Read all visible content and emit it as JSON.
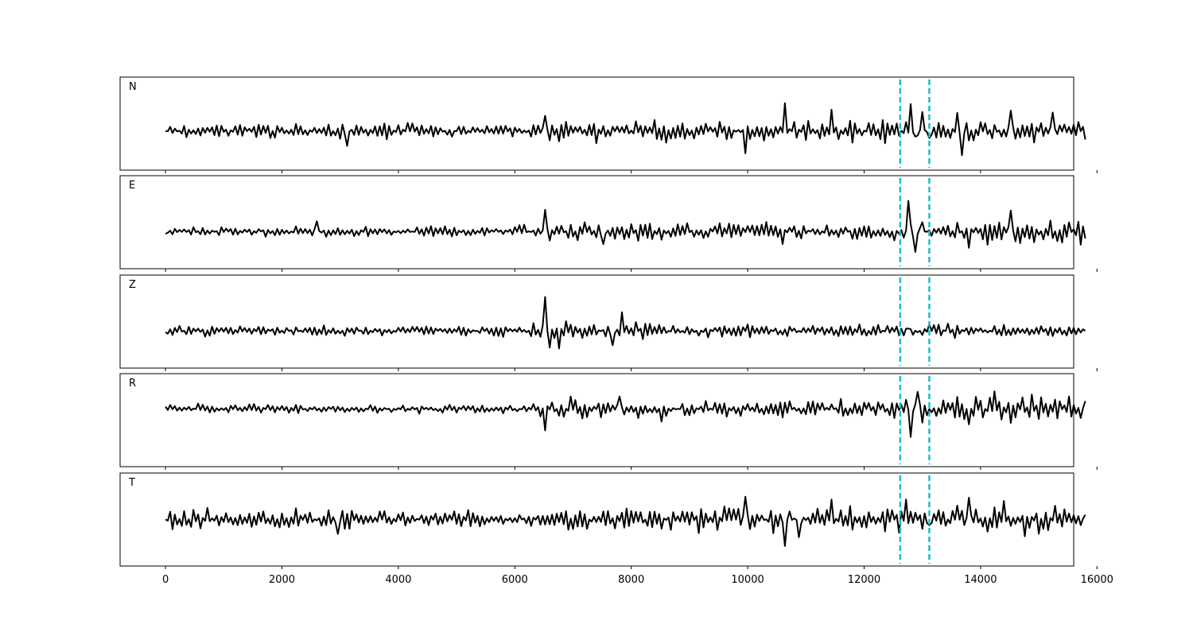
{
  "chart_data": {
    "type": "line",
    "x_range": [
      -780,
      15600
    ],
    "x_ticks": [
      "0",
      "2000",
      "4000",
      "6000",
      "8000",
      "10000",
      "12000",
      "14000",
      "16000"
    ],
    "x_tick_values": [
      0,
      2000,
      4000,
      6000,
      8000,
      10000,
      12000,
      14000,
      16000
    ],
    "n_samples": 15800,
    "line_color": "#000000",
    "marker_color": "#17becf",
    "markers": [
      12620,
      13120
    ],
    "panels": [
      {
        "name": "N",
        "baseline": 0.58,
        "features": [
          {
            "x": 0,
            "v": 0.0
          },
          {
            "x": 3140,
            "v": -0.32
          },
          {
            "x": 6540,
            "v": 0.33
          },
          {
            "x": 6620,
            "v": -0.2
          },
          {
            "x": 9960,
            "v": -0.48
          },
          {
            "x": 10640,
            "v": 0.6
          },
          {
            "x": 11450,
            "v": 0.46
          },
          {
            "x": 12790,
            "v": 0.58
          },
          {
            "x": 12880,
            "v": -0.12
          },
          {
            "x": 13010,
            "v": 0.41
          },
          {
            "x": 13120,
            "v": -0.15
          },
          {
            "x": 13620,
            "v": 0.39
          },
          {
            "x": 13680,
            "v": -0.52
          },
          {
            "x": 14540,
            "v": 0.44
          },
          {
            "x": 15260,
            "v": 0.4
          },
          {
            "x": 15800,
            "v": -0.18
          }
        ]
      },
      {
        "name": "E",
        "baseline": 0.6,
        "features": [
          {
            "x": 0,
            "v": -0.05
          },
          {
            "x": 2620,
            "v": 0.22
          },
          {
            "x": 6520,
            "v": 0.47
          },
          {
            "x": 7520,
            "v": -0.27
          },
          {
            "x": 10620,
            "v": -0.27
          },
          {
            "x": 12780,
            "v": 0.66
          },
          {
            "x": 12870,
            "v": -0.44
          },
          {
            "x": 13020,
            "v": 0.2
          },
          {
            "x": 13800,
            "v": -0.35
          },
          {
            "x": 14530,
            "v": 0.45
          },
          {
            "x": 15800,
            "v": -0.15
          }
        ]
      },
      {
        "name": "Z",
        "baseline": 0.6,
        "features": [
          {
            "x": 0,
            "v": -0.03
          },
          {
            "x": 6520,
            "v": 0.73
          },
          {
            "x": 6610,
            "v": -0.36
          },
          {
            "x": 6780,
            "v": -0.38
          },
          {
            "x": 7700,
            "v": -0.31
          },
          {
            "x": 7850,
            "v": 0.4
          },
          {
            "x": 12780,
            "v": 0.05
          },
          {
            "x": 15800,
            "v": 0.0
          }
        ]
      },
      {
        "name": "R",
        "baseline": 0.38,
        "features": [
          {
            "x": 0,
            "v": 0.05
          },
          {
            "x": 6540,
            "v": -0.46
          },
          {
            "x": 6950,
            "v": 0.27
          },
          {
            "x": 7820,
            "v": 0.27
          },
          {
            "x": 8540,
            "v": -0.27
          },
          {
            "x": 12710,
            "v": 0.2
          },
          {
            "x": 12790,
            "v": -0.6
          },
          {
            "x": 12920,
            "v": 0.37
          },
          {
            "x": 13800,
            "v": -0.33
          },
          {
            "x": 14260,
            "v": 0.38
          },
          {
            "x": 14520,
            "v": -0.3
          },
          {
            "x": 15800,
            "v": 0.17
          }
        ]
      },
      {
        "name": "T",
        "baseline": 0.5,
        "features": [
          {
            "x": 0,
            "v": 0.0
          },
          {
            "x": 2950,
            "v": -0.31
          },
          {
            "x": 9980,
            "v": 0.49
          },
          {
            "x": 10650,
            "v": -0.57
          },
          {
            "x": 10880,
            "v": -0.38
          },
          {
            "x": 11450,
            "v": 0.43
          },
          {
            "x": 12740,
            "v": 0.43
          },
          {
            "x": 13120,
            "v": -0.12
          },
          {
            "x": 13820,
            "v": 0.47
          },
          {
            "x": 14400,
            "v": 0.4
          },
          {
            "x": 14780,
            "v": -0.36
          },
          {
            "x": 15800,
            "v": 0.1
          }
        ]
      }
    ]
  }
}
